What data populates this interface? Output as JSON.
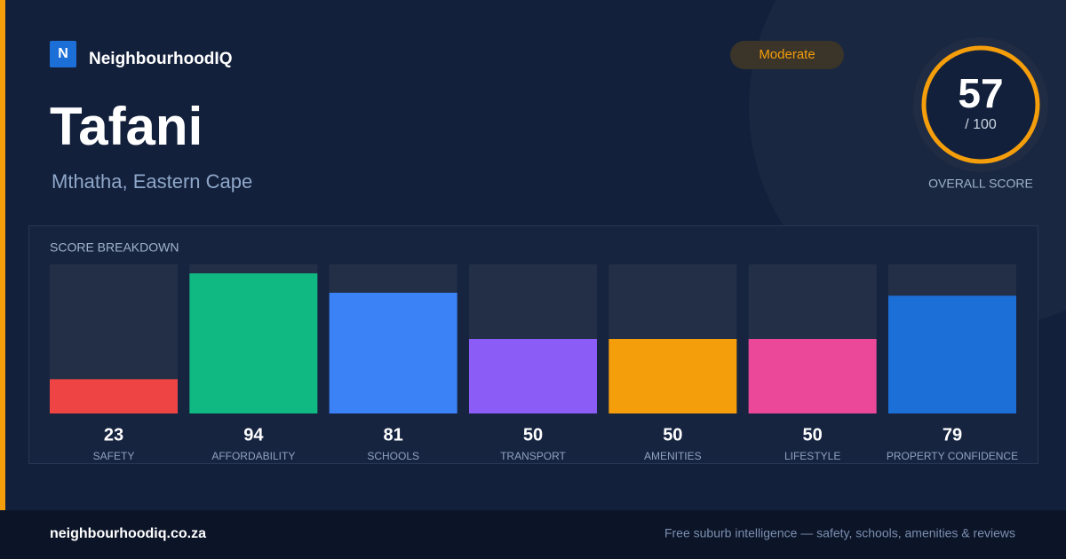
{
  "brand": {
    "logo": "N",
    "name": "NeighbourhoodIQ"
  },
  "suburb": "Tafani",
  "location": "Mthatha, Eastern Cape",
  "badge": "Moderate",
  "overall": {
    "score": 57,
    "out_of": "/ 100",
    "label": "OVERALL SCORE"
  },
  "chart_data": {
    "type": "bar",
    "title": "SCORE BREAKDOWN",
    "categories": [
      "SAFETY",
      "AFFORDABILITY",
      "SCHOOLS",
      "TRANSPORT",
      "AMENITIES",
      "LIFESTYLE",
      "PROPERTY CONFIDENCE"
    ],
    "values": [
      23,
      94,
      81,
      50,
      50,
      50,
      79
    ],
    "colors": [
      "#ef4444",
      "#10b981",
      "#3b82f6",
      "#8b5cf6",
      "#f59e0b",
      "#ec4899",
      "#1d6fd8"
    ],
    "ylim": [
      0,
      100
    ]
  },
  "footer": {
    "url": "neighbourhoodiq.co.za",
    "tagline": "Free suburb intelligence — safety, schools, amenities & reviews"
  }
}
